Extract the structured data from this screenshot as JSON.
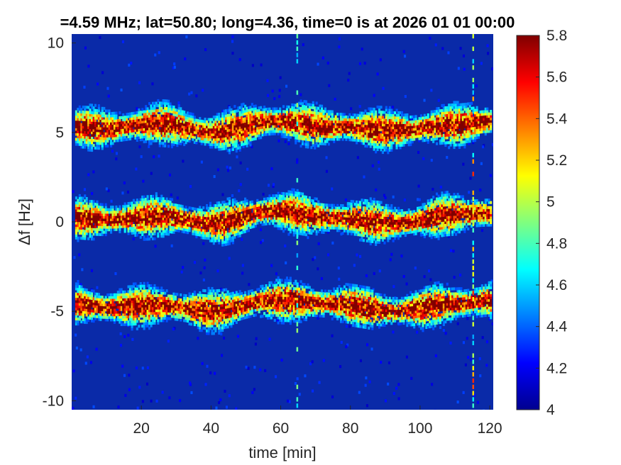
{
  "chart_data": {
    "type": "heatmap",
    "title": "=4.59 MHz;  lat=50.80; long=4.36, time=0 is at 2026 01 01 00:00",
    "xlabel": "time [min]",
    "ylabel": "Δf [Hz]",
    "xlim": [
      0,
      121
    ],
    "ylim": [
      -10.5,
      10.5
    ],
    "x_ticks": [
      {
        "value": 20,
        "label": "20"
      },
      {
        "value": 40,
        "label": "40"
      },
      {
        "value": 60,
        "label": "60"
      },
      {
        "value": 80,
        "label": "80"
      },
      {
        "value": 100,
        "label": "100"
      },
      {
        "value": 120,
        "label": "120"
      }
    ],
    "y_ticks": [
      {
        "value": 10,
        "label": "10"
      },
      {
        "value": 5,
        "label": "5"
      },
      {
        "value": 0,
        "label": "0"
      },
      {
        "value": -5,
        "label": "-5"
      },
      {
        "value": -10,
        "label": "-10"
      }
    ],
    "colorbar": {
      "range": [
        4,
        5.8
      ],
      "colormap": "jet",
      "ticks": [
        {
          "value": 5.8,
          "label": "5.8"
        },
        {
          "value": 5.6,
          "label": "5.6"
        },
        {
          "value": 5.4,
          "label": "5.4"
        },
        {
          "value": 5.2,
          "label": "5.2"
        },
        {
          "value": 5.0,
          "label": "5"
        },
        {
          "value": 4.8,
          "label": "4.8"
        },
        {
          "value": 4.6,
          "label": "4.6"
        },
        {
          "value": 4.4,
          "label": "4.4"
        },
        {
          "value": 4.2,
          "label": "4.2"
        },
        {
          "value": 4.0,
          "label": "4"
        }
      ]
    },
    "background_value": 4.05,
    "background_color": "#0a2aa8",
    "traces": [
      {
        "center_offset": 5.2,
        "time": [
          0,
          10,
          25,
          40,
          58,
          75,
          93,
          110,
          120
        ],
        "delta_f": [
          5.4,
          5.3,
          5.6,
          5.1,
          5.7,
          5.4,
          5.2,
          5.5,
          5.7
        ]
      },
      {
        "center_offset": 0,
        "time": [
          0,
          10,
          25,
          40,
          58,
          75,
          93,
          110,
          120
        ],
        "delta_f": [
          0.3,
          0.2,
          0.4,
          0.0,
          0.7,
          0.3,
          0.0,
          0.5,
          0.6
        ]
      },
      {
        "center_offset": -5.0,
        "time": [
          0,
          10,
          25,
          40,
          58,
          75,
          93,
          110,
          120
        ],
        "delta_f": [
          -4.5,
          -4.7,
          -4.6,
          -4.9,
          -4.3,
          -4.5,
          -4.9,
          -4.5,
          -4.3
        ]
      }
    ],
    "vertical_artifacts": [
      {
        "time": 64.5,
        "strength": 0.35
      },
      {
        "time": 115,
        "strength": 0.8
      }
    ]
  }
}
